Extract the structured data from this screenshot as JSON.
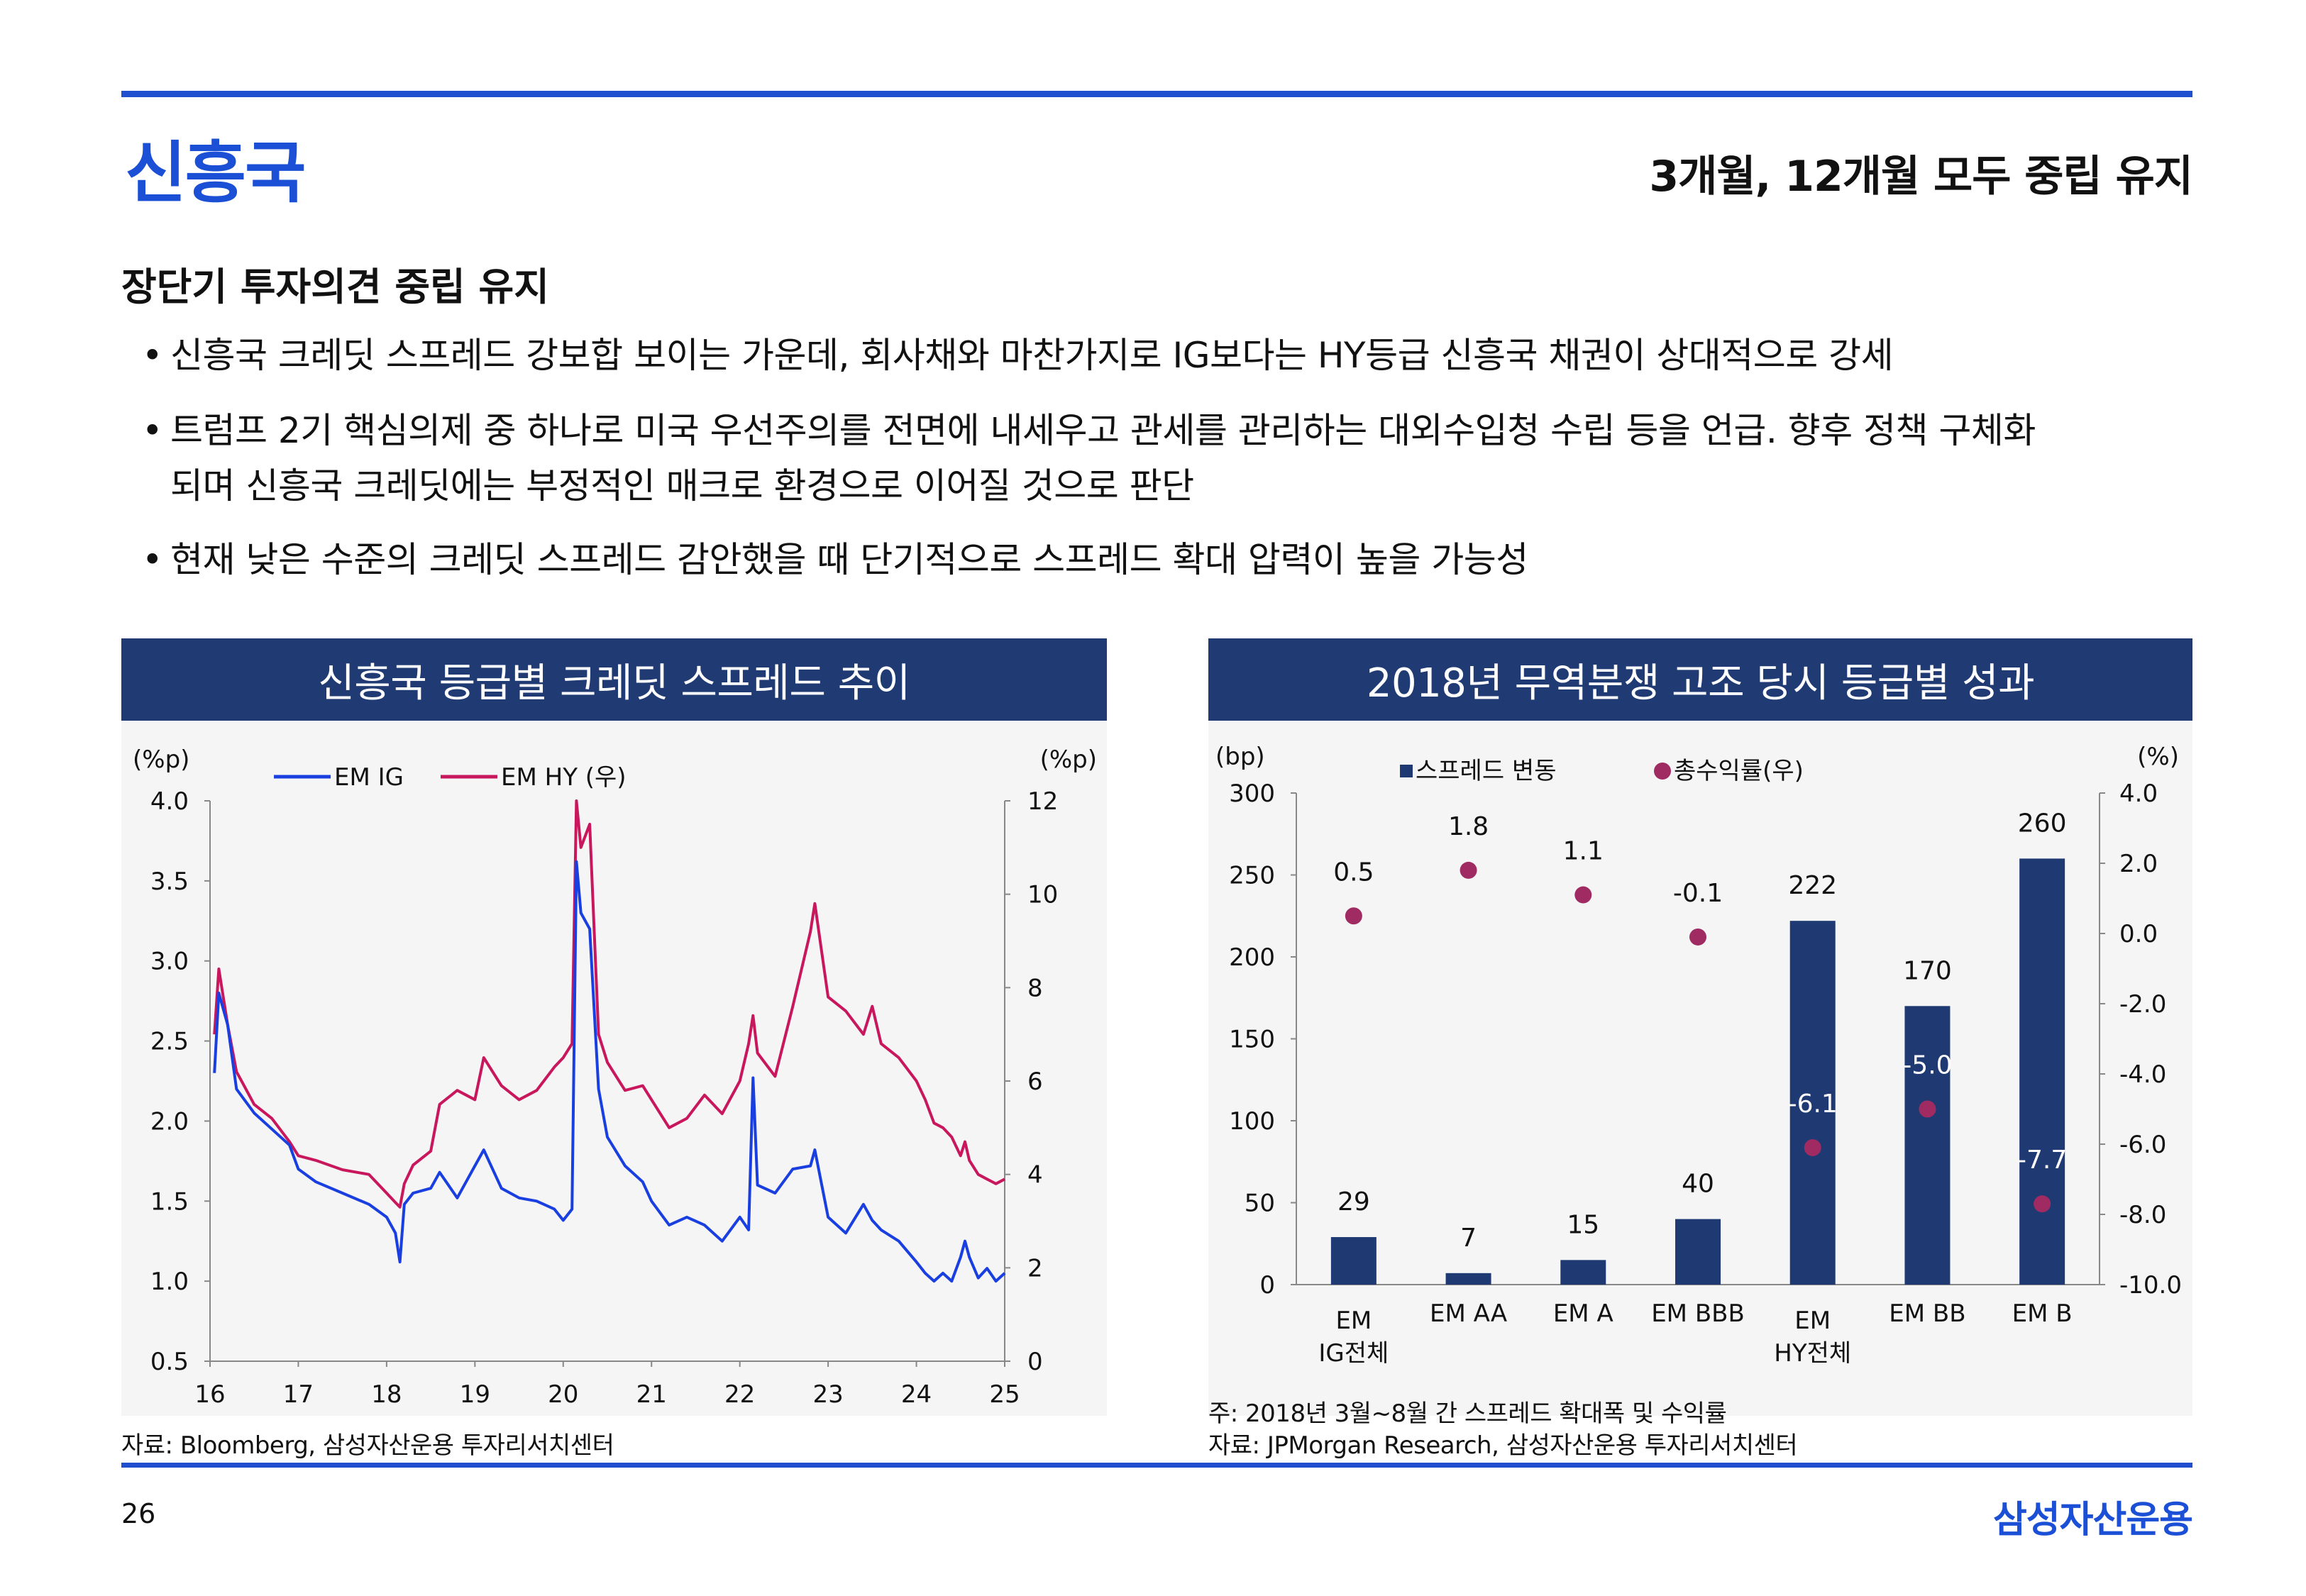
{
  "header": {
    "title": "신흥국",
    "subtitle": "3개월, 12개월 모두 중립 유지"
  },
  "section": {
    "heading": "장단기 투자의견 중립 유지",
    "bullets": [
      {
        "line1": "신흥국 크레딧 스프레드 강보합 보이는 가운데, 회사채와 마찬가지로 IG보다는 HY등급 신흥국 채권이 상대적으로 강세",
        "line2": ""
      },
      {
        "line1": "트럼프 2기 핵심의제 중 하나로 미국 우선주의를 전면에 내세우고 관세를 관리하는 대외수입청 수립 등을 언급. 향후 정책 구체화",
        "line2": "되며 신흥국 크레딧에는 부정적인 매크로 환경으로 이어질 것으로 판단"
      },
      {
        "line1": "현재 낮은 수준의 크레딧 스프레드 감안했을 때 단기적으로 스프레드 확대 압력이 높을 가능성",
        "line2": ""
      }
    ]
  },
  "bullet_symbol": "•",
  "left_panel": {
    "header": "신흥국 등급별 크레딧 스프레드 추이",
    "source": "자료: Bloomberg, 삼성자산운용 투자리서치센터"
  },
  "right_panel": {
    "header": "2018년 무역분쟁 고조 당시 등급별 성과",
    "note": "주: 2018년 3월~8월 간 스프레드 확대폭 및 수익률",
    "source": "자료: JPMorgan Research, 삼성자산운용 투자리서치센터"
  },
  "footer": {
    "page_number": "26",
    "brand": "삼성자산운용"
  },
  "colors": {
    "accent": "#1f4fcf",
    "panel_header": "#203a73",
    "em_ig": "#1a3fe0",
    "em_hy": "#c8175d",
    "bar": "#1f3a73",
    "dot": "#a02a62"
  },
  "chart_data": [
    {
      "type": "line",
      "title": "신흥국 등급별 크레딧 스프레드 추이",
      "ylabel_left": "(%p)",
      "ylabel_right": "(%p)",
      "ylim_left": [
        0.5,
        4.0
      ],
      "ylim_right": [
        0,
        12
      ],
      "yticks_left": [
        "4.0",
        "3.5",
        "3.0",
        "2.5",
        "2.0",
        "1.5",
        "1.0",
        "0.5"
      ],
      "yticks_right": [
        "12",
        "10",
        "8",
        "6",
        "4",
        "2",
        "0"
      ],
      "x_range": [
        16,
        25
      ],
      "xticks": [
        "16",
        "17",
        "18",
        "19",
        "20",
        "21",
        "22",
        "23",
        "24",
        "25"
      ],
      "series": [
        {
          "name": "EM IG",
          "axis": "left",
          "points": [
            [
              16.05,
              2.3
            ],
            [
              16.1,
              2.8
            ],
            [
              16.2,
              2.6
            ],
            [
              16.3,
              2.2
            ],
            [
              16.5,
              2.05
            ],
            [
              16.7,
              1.95
            ],
            [
              16.9,
              1.85
            ],
            [
              17.0,
              1.7
            ],
            [
              17.2,
              1.62
            ],
            [
              17.5,
              1.55
            ],
            [
              17.8,
              1.48
            ],
            [
              18.0,
              1.4
            ],
            [
              18.1,
              1.3
            ],
            [
              18.15,
              1.12
            ],
            [
              18.2,
              1.48
            ],
            [
              18.3,
              1.55
            ],
            [
              18.5,
              1.58
            ],
            [
              18.6,
              1.68
            ],
            [
              18.8,
              1.52
            ],
            [
              19.0,
              1.72
            ],
            [
              19.1,
              1.82
            ],
            [
              19.3,
              1.58
            ],
            [
              19.5,
              1.52
            ],
            [
              19.7,
              1.5
            ],
            [
              19.9,
              1.45
            ],
            [
              20.0,
              1.38
            ],
            [
              20.1,
              1.45
            ],
            [
              20.15,
              3.62
            ],
            [
              20.2,
              3.3
            ],
            [
              20.3,
              3.2
            ],
            [
              20.4,
              2.2
            ],
            [
              20.5,
              1.9
            ],
            [
              20.7,
              1.72
            ],
            [
              20.9,
              1.62
            ],
            [
              21.0,
              1.5
            ],
            [
              21.2,
              1.35
            ],
            [
              21.4,
              1.4
            ],
            [
              21.6,
              1.35
            ],
            [
              21.8,
              1.25
            ],
            [
              22.0,
              1.4
            ],
            [
              22.1,
              1.32
            ],
            [
              22.15,
              2.27
            ],
            [
              22.2,
              1.6
            ],
            [
              22.4,
              1.55
            ],
            [
              22.6,
              1.7
            ],
            [
              22.8,
              1.72
            ],
            [
              22.85,
              1.82
            ],
            [
              23.0,
              1.4
            ],
            [
              23.2,
              1.3
            ],
            [
              23.4,
              1.48
            ],
            [
              23.5,
              1.38
            ],
            [
              23.6,
              1.32
            ],
            [
              23.8,
              1.25
            ],
            [
              24.0,
              1.12
            ],
            [
              24.1,
              1.05
            ],
            [
              24.2,
              1.0
            ],
            [
              24.3,
              1.05
            ],
            [
              24.4,
              1.0
            ],
            [
              24.5,
              1.15
            ],
            [
              24.55,
              1.25
            ],
            [
              24.6,
              1.15
            ],
            [
              24.7,
              1.02
            ],
            [
              24.8,
              1.08
            ],
            [
              24.9,
              1.0
            ],
            [
              25.0,
              1.05
            ]
          ]
        },
        {
          "name": "EM HY (우)",
          "axis": "right",
          "points": [
            [
              16.05,
              7.0
            ],
            [
              16.1,
              8.4
            ],
            [
              16.2,
              7.2
            ],
            [
              16.3,
              6.2
            ],
            [
              16.5,
              5.5
            ],
            [
              16.7,
              5.2
            ],
            [
              16.9,
              4.7
            ],
            [
              17.0,
              4.4
            ],
            [
              17.2,
              4.3
            ],
            [
              17.5,
              4.1
            ],
            [
              17.8,
              4.0
            ],
            [
              18.0,
              3.6
            ],
            [
              18.1,
              3.4
            ],
            [
              18.15,
              3.3
            ],
            [
              18.2,
              3.8
            ],
            [
              18.3,
              4.2
            ],
            [
              18.5,
              4.5
            ],
            [
              18.6,
              5.5
            ],
            [
              18.8,
              5.8
            ],
            [
              19.0,
              5.6
            ],
            [
              19.1,
              6.5
            ],
            [
              19.3,
              5.9
            ],
            [
              19.5,
              5.6
            ],
            [
              19.7,
              5.8
            ],
            [
              19.9,
              6.3
            ],
            [
              20.0,
              6.5
            ],
            [
              20.1,
              6.8
            ],
            [
              20.15,
              12.0
            ],
            [
              20.2,
              11.0
            ],
            [
              20.3,
              11.5
            ],
            [
              20.4,
              7.0
            ],
            [
              20.5,
              6.4
            ],
            [
              20.7,
              5.8
            ],
            [
              20.9,
              5.9
            ],
            [
              21.0,
              5.6
            ],
            [
              21.2,
              5.0
            ],
            [
              21.4,
              5.2
            ],
            [
              21.6,
              5.7
            ],
            [
              21.8,
              5.3
            ],
            [
              22.0,
              6.0
            ],
            [
              22.1,
              6.8
            ],
            [
              22.15,
              7.4
            ],
            [
              22.2,
              6.6
            ],
            [
              22.4,
              6.1
            ],
            [
              22.6,
              7.6
            ],
            [
              22.8,
              9.2
            ],
            [
              22.85,
              9.8
            ],
            [
              23.0,
              7.8
            ],
            [
              23.2,
              7.5
            ],
            [
              23.4,
              7.0
            ],
            [
              23.5,
              7.6
            ],
            [
              23.6,
              6.8
            ],
            [
              23.8,
              6.5
            ],
            [
              24.0,
              6.0
            ],
            [
              24.1,
              5.6
            ],
            [
              24.2,
              5.1
            ],
            [
              24.3,
              5.0
            ],
            [
              24.4,
              4.8
            ],
            [
              24.5,
              4.4
            ],
            [
              24.55,
              4.7
            ],
            [
              24.6,
              4.3
            ],
            [
              24.7,
              4.0
            ],
            [
              24.8,
              3.9
            ],
            [
              24.9,
              3.8
            ],
            [
              25.0,
              3.9
            ]
          ]
        }
      ]
    },
    {
      "type": "bar",
      "title": "2018년 무역분쟁 고조 당시 등급별 성과",
      "ylabel_left": "(bp)",
      "ylabel_right": "(%)",
      "ylim_left": [
        0,
        300
      ],
      "ylim_right": [
        -10,
        4
      ],
      "yticks_left": [
        "300",
        "250",
        "200",
        "150",
        "100",
        "50",
        "0"
      ],
      "yticks_right": [
        "4.0",
        "2.0",
        "0.0",
        "-2.0",
        "-4.0",
        "-6.0",
        "-8.0",
        "-10.0"
      ],
      "legend": [
        "스프레드 변동",
        "총수익률(우)"
      ],
      "categories": [
        {
          "line1": "EM",
          "line2": "IG전체"
        },
        {
          "line1": "EM AA",
          "line2": ""
        },
        {
          "line1": "EM A",
          "line2": ""
        },
        {
          "line1": "EM BBB",
          "line2": ""
        },
        {
          "line1": "EM",
          "line2": "HY전체"
        },
        {
          "line1": "EM BB",
          "line2": ""
        },
        {
          "line1": "EM B",
          "line2": ""
        }
      ],
      "series": [
        {
          "name": "스프레드 변동",
          "axis": "left",
          "values": [
            29,
            7,
            15,
            40,
            222,
            170,
            260
          ],
          "labels": [
            "29",
            "7",
            "15",
            "40",
            "222",
            "170",
            "260"
          ]
        },
        {
          "name": "총수익률(우)",
          "axis": "right",
          "values": [
            0.5,
            1.8,
            1.1,
            -0.1,
            -6.1,
            -5.0,
            -7.7
          ],
          "labels": [
            "0.5",
            "1.8",
            "1.1",
            "-0.1",
            "-6.1",
            "-5.0",
            "-7.7"
          ]
        }
      ]
    }
  ]
}
